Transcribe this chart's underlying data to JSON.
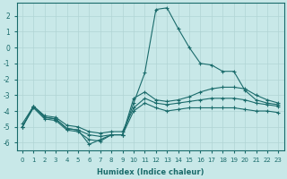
{
  "xlabel": "Humidex (Indice chaleur)",
  "bg_color": "#c8e8e8",
  "line_color": "#1a6b6b",
  "grid_color": "#b0d4d4",
  "xlim": [
    -0.5,
    23.5
  ],
  "ylim": [
    -6.5,
    2.8
  ],
  "yticks": [
    2,
    1,
    0,
    -1,
    -2,
    -3,
    -4,
    -5,
    -6
  ],
  "xticks": [
    0,
    1,
    2,
    3,
    4,
    5,
    6,
    7,
    8,
    9,
    10,
    11,
    12,
    13,
    14,
    15,
    16,
    17,
    18,
    19,
    20,
    21,
    22,
    23
  ],
  "series": [
    {
      "x": [
        0,
        1,
        2,
        3,
        4,
        5,
        6,
        7,
        8,
        9,
        10,
        11,
        12,
        13,
        14,
        15,
        16,
        17,
        18,
        19,
        20,
        21,
        22,
        23
      ],
      "y": [
        -5.0,
        -3.7,
        -4.4,
        -4.5,
        -5.1,
        -5.2,
        -6.1,
        -5.8,
        -5.5,
        -5.5,
        -3.5,
        -1.6,
        2.4,
        2.5,
        1.2,
        0.0,
        -1.0,
        -1.1,
        -1.5,
        -1.5,
        -2.7,
        -3.3,
        -3.5,
        -3.6
      ]
    },
    {
      "x": [
        0,
        1,
        2,
        3,
        4,
        5,
        6,
        7,
        8,
        9,
        10,
        11,
        12,
        13,
        14,
        15,
        16,
        17,
        18,
        19,
        20,
        21,
        22,
        23
      ],
      "y": [
        -5.0,
        -3.7,
        -4.4,
        -4.5,
        -5.1,
        -5.2,
        -5.5,
        -5.6,
        -5.5,
        -5.5,
        -3.2,
        -2.8,
        -3.3,
        -3.4,
        -3.3,
        -3.1,
        -2.8,
        -2.6,
        -2.5,
        -2.5,
        -2.6,
        -3.0,
        -3.3,
        -3.5
      ]
    },
    {
      "x": [
        0,
        1,
        2,
        3,
        4,
        5,
        6,
        7,
        8,
        9,
        10,
        11,
        12,
        13,
        14,
        15,
        16,
        17,
        18,
        19,
        20,
        21,
        22,
        23
      ],
      "y": [
        -4.8,
        -3.7,
        -4.3,
        -4.4,
        -4.9,
        -5.0,
        -5.3,
        -5.4,
        -5.3,
        -5.3,
        -3.8,
        -3.2,
        -3.5,
        -3.6,
        -3.5,
        -3.4,
        -3.3,
        -3.2,
        -3.2,
        -3.2,
        -3.3,
        -3.5,
        -3.6,
        -3.7
      ]
    },
    {
      "x": [
        0,
        1,
        2,
        3,
        4,
        5,
        6,
        7,
        8,
        9,
        10,
        11,
        12,
        13,
        14,
        15,
        16,
        17,
        18,
        19,
        20,
        21,
        22,
        23
      ],
      "y": [
        -5.0,
        -3.8,
        -4.5,
        -4.6,
        -5.2,
        -5.3,
        -5.8,
        -5.9,
        -5.5,
        -5.5,
        -4.0,
        -3.5,
        -3.8,
        -4.0,
        -3.9,
        -3.8,
        -3.8,
        -3.8,
        -3.8,
        -3.8,
        -3.9,
        -4.0,
        -4.0,
        -4.1
      ]
    }
  ]
}
